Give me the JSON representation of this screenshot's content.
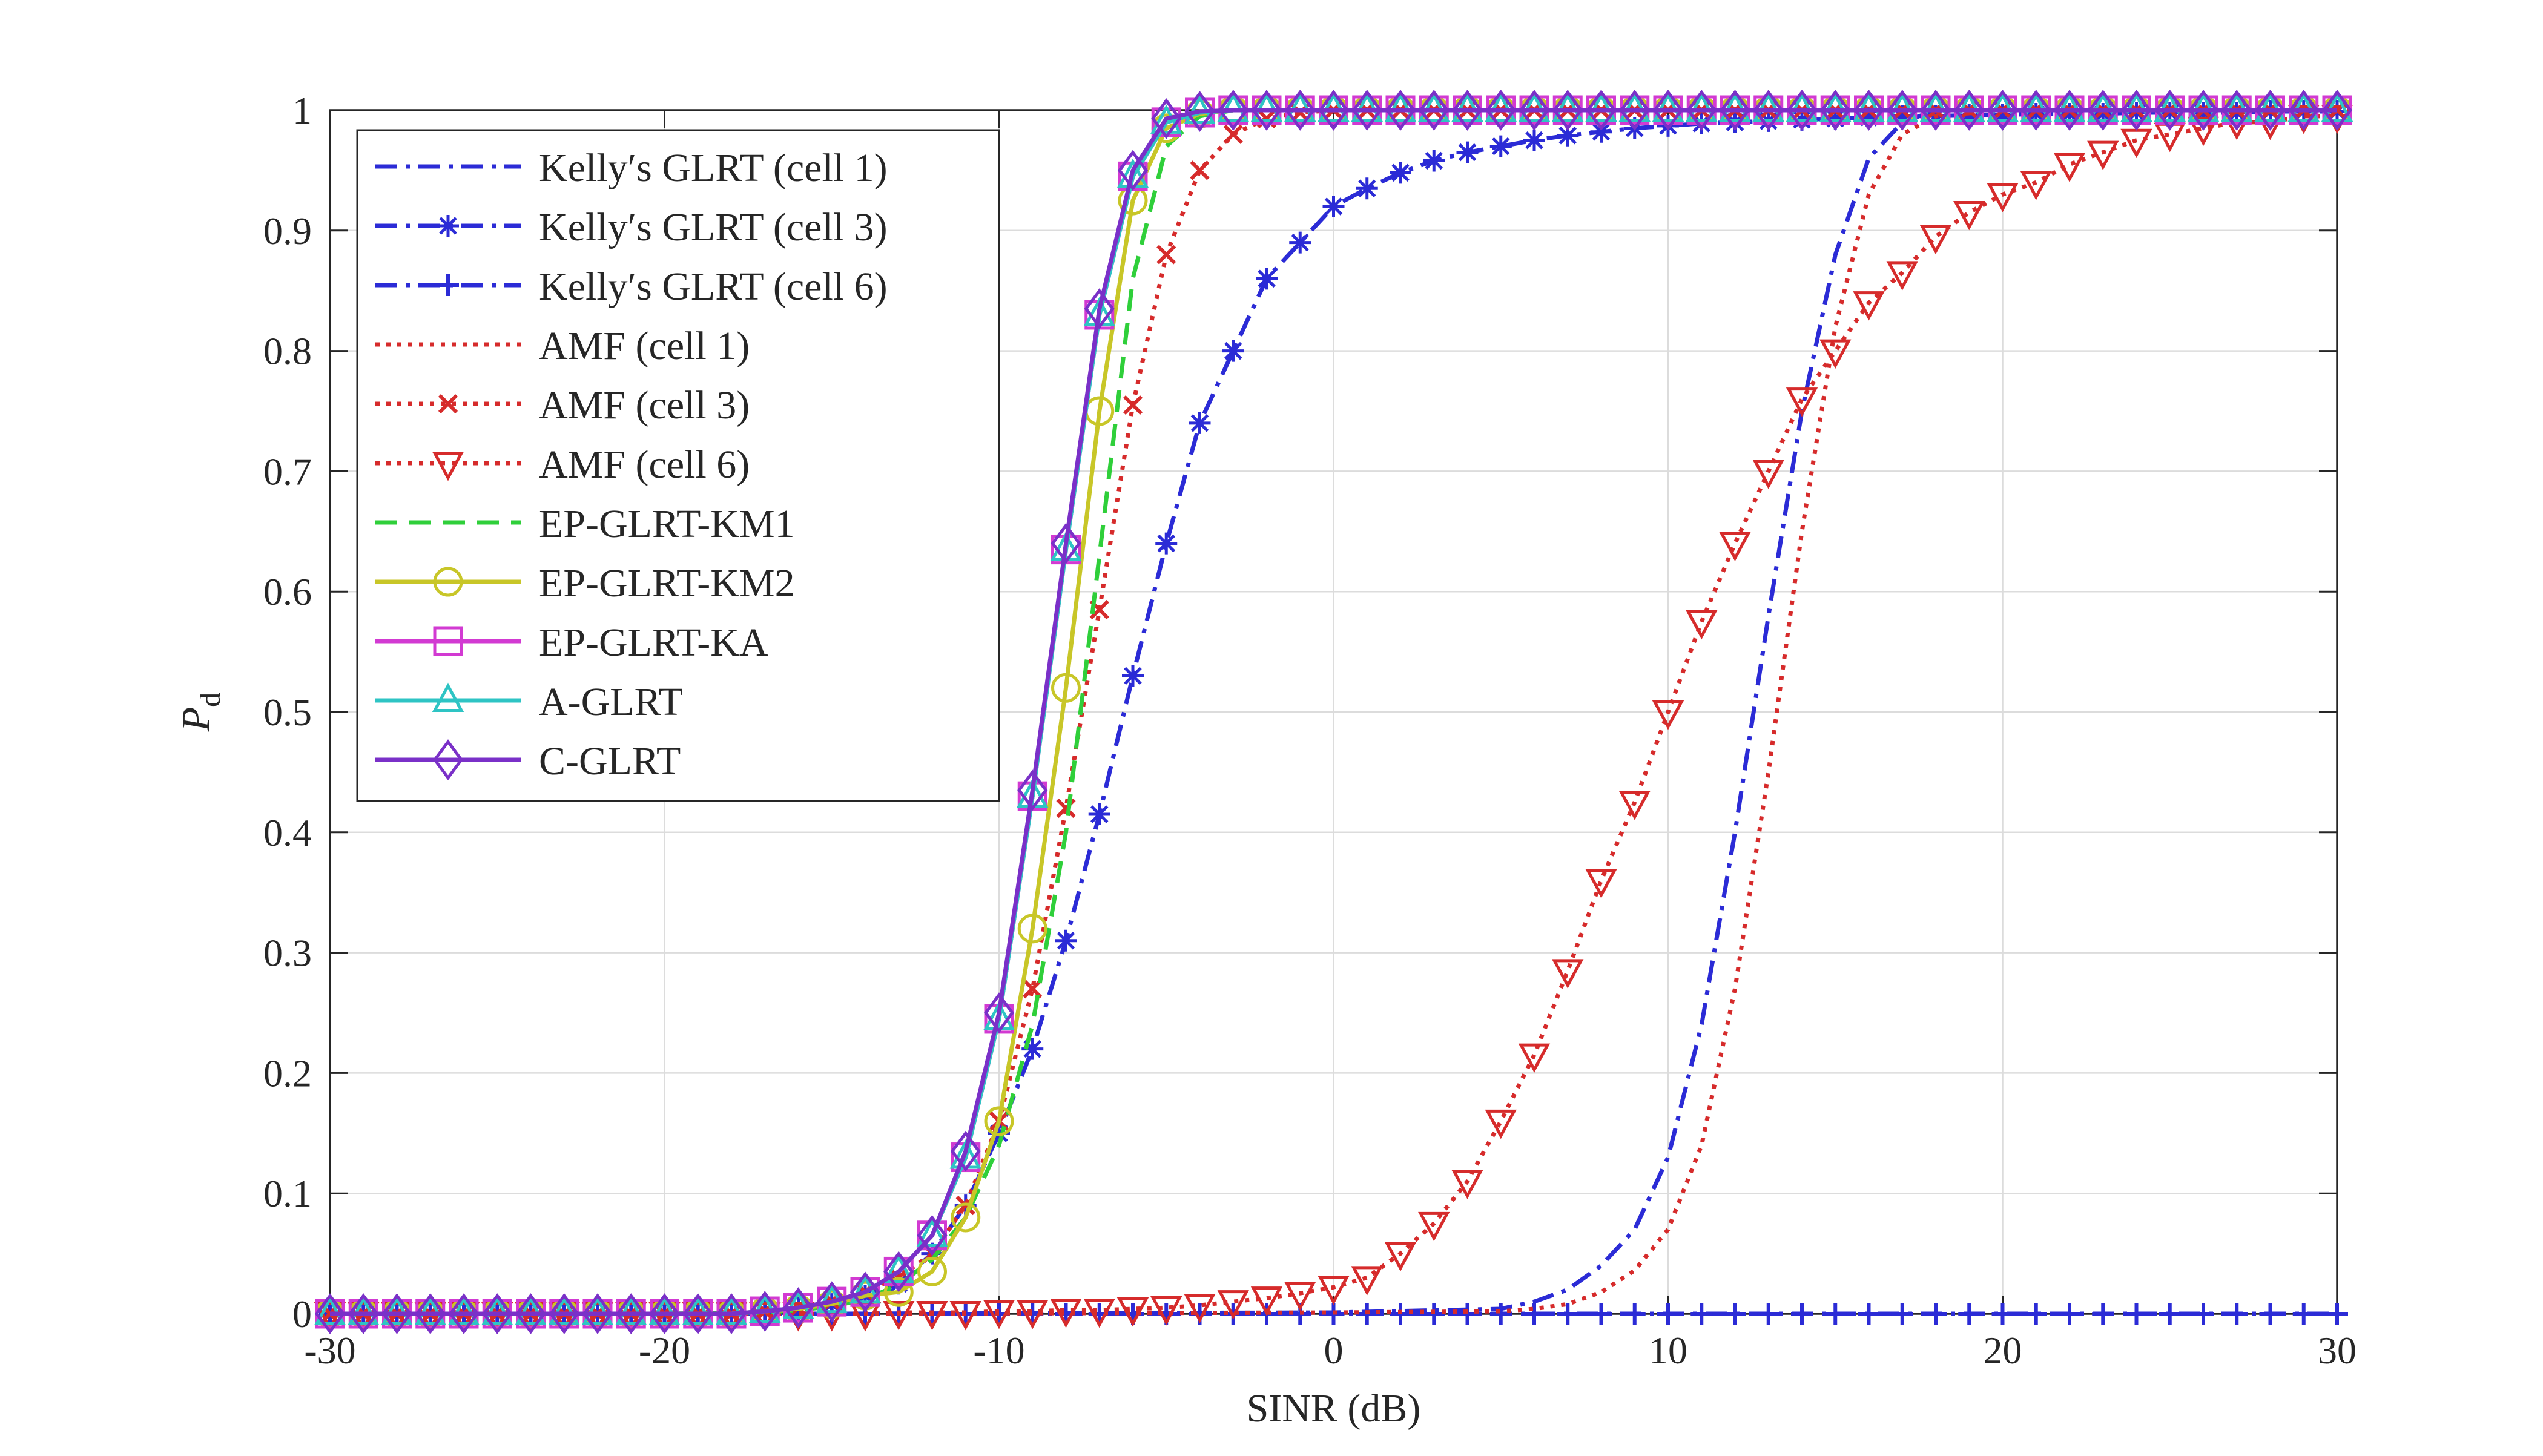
{
  "chart_data": {
    "type": "line",
    "xlabel": "SINR (dB)",
    "ylabel": "P",
    "ylabel_sub": "d",
    "xlim": [
      -30,
      30
    ],
    "ylim": [
      0,
      1
    ],
    "xticks": [
      "-30",
      "-20",
      "-10",
      "0",
      "10",
      "20",
      "30"
    ],
    "yticks": [
      "0",
      "0.1",
      "0.2",
      "0.3",
      "0.4",
      "0.5",
      "0.6",
      "0.7",
      "0.8",
      "0.9",
      "1"
    ],
    "grid": true,
    "legend_position": "top-left",
    "series": [
      {
        "name": "Kelly′s GLRT (cell 1)",
        "color": "#2b2bd6",
        "dash": "dashdot",
        "marker": "none",
        "x": [
          -30,
          -20,
          -15,
          0,
          5,
          6,
          7,
          8,
          9,
          10,
          11,
          12,
          13,
          14,
          15,
          16,
          17,
          18,
          20,
          25,
          30
        ],
        "y": [
          0,
          0,
          0,
          0.001,
          0.004,
          0.01,
          0.02,
          0.04,
          0.07,
          0.13,
          0.24,
          0.4,
          0.58,
          0.75,
          0.88,
          0.96,
          0.99,
          1,
          1,
          1,
          1
        ]
      },
      {
        "name": "Kelly′s GLRT (cell 3)",
        "color": "#2b2bd6",
        "dash": "dashdot",
        "marker": "asterisk",
        "x": [
          -30,
          -29,
          -28,
          -27,
          -26,
          -25,
          -24,
          -23,
          -22,
          -21,
          -20,
          -19,
          -18,
          -17,
          -16,
          -15,
          -14,
          -13,
          -12,
          -11,
          -10,
          -9,
          -8,
          -7,
          -6,
          -5,
          -4,
          -3,
          -2,
          -1,
          0,
          1,
          2,
          3,
          4,
          5,
          6,
          7,
          8,
          9,
          10,
          11,
          12,
          13,
          14,
          15,
          16,
          17,
          18,
          19,
          20,
          21,
          22,
          23,
          24,
          25,
          26,
          27,
          28,
          29,
          30
        ],
        "y": [
          0,
          0,
          0,
          0,
          0,
          0,
          0,
          0,
          0,
          0,
          0,
          0,
          0,
          0.002,
          0.005,
          0.008,
          0.015,
          0.025,
          0.05,
          0.09,
          0.15,
          0.22,
          0.31,
          0.415,
          0.53,
          0.64,
          0.74,
          0.8,
          0.86,
          0.89,
          0.92,
          0.935,
          0.948,
          0.958,
          0.965,
          0.97,
          0.975,
          0.979,
          0.982,
          0.985,
          0.987,
          0.989,
          0.99,
          0.991,
          0.992,
          0.993,
          0.994,
          0.995,
          0.995,
          0.996,
          0.996,
          0.997,
          0.997,
          0.997,
          0.998,
          0.998,
          0.998,
          0.998,
          0.999,
          0.999,
          0.999
        ]
      },
      {
        "name": "Kelly′s GLRT (cell 6)",
        "color": "#2b2bd6",
        "dash": "dashdot",
        "marker": "plus",
        "x": [
          -30,
          -29,
          -28,
          -27,
          -26,
          -25,
          -24,
          -23,
          -22,
          -21,
          -20,
          -19,
          -18,
          -17,
          -16,
          -15,
          -14,
          -13,
          -12,
          -11,
          -10,
          -9,
          -8,
          -7,
          -6,
          -5,
          -4,
          -3,
          -2,
          -1,
          0,
          1,
          2,
          3,
          4,
          5,
          6,
          7,
          8,
          9,
          10,
          11,
          12,
          13,
          14,
          15,
          16,
          17,
          18,
          19,
          20,
          21,
          22,
          23,
          24,
          25,
          26,
          27,
          28,
          29,
          30
        ],
        "y": [
          0,
          0,
          0,
          0,
          0,
          0,
          0,
          0,
          0,
          0,
          0,
          0,
          0,
          0,
          0,
          0,
          0,
          0,
          0,
          0,
          0,
          0,
          0,
          0,
          0,
          0,
          0,
          0,
          0,
          0,
          0,
          0,
          0,
          0,
          0,
          0,
          0,
          0,
          0,
          0,
          0,
          0,
          0,
          0,
          0,
          0,
          0,
          0,
          0,
          0,
          0,
          0,
          0,
          0,
          0,
          0,
          0,
          0,
          0,
          0,
          0
        ]
      },
      {
        "name": "AMF (cell 1)",
        "color": "#d62b2b",
        "dash": "dotted",
        "marker": "none",
        "x": [
          -30,
          -20,
          -15,
          0,
          5,
          6,
          7,
          8,
          9,
          10,
          11,
          12,
          13,
          14,
          15,
          16,
          17,
          18,
          20,
          25,
          30
        ],
        "y": [
          0,
          0,
          0,
          0.001,
          0.002,
          0.004,
          0.008,
          0.018,
          0.036,
          0.07,
          0.14,
          0.27,
          0.45,
          0.65,
          0.82,
          0.93,
          0.98,
          0.995,
          1,
          1,
          1
        ]
      },
      {
        "name": "AMF (cell 3)",
        "color": "#d62b2b",
        "dash": "dotted",
        "marker": "x",
        "x": [
          -30,
          -29,
          -28,
          -27,
          -26,
          -25,
          -24,
          -23,
          -22,
          -21,
          -20,
          -19,
          -18,
          -17,
          -16,
          -15,
          -14,
          -13,
          -12,
          -11,
          -10,
          -9,
          -8,
          -7,
          -6,
          -5,
          -4,
          -3,
          -2,
          -1,
          0,
          1,
          2,
          3,
          4,
          5,
          6,
          7,
          8,
          9,
          10,
          11,
          12,
          13,
          14,
          15,
          16,
          17,
          18,
          19,
          20,
          21,
          22,
          23,
          24,
          25,
          26,
          27,
          28,
          29,
          30
        ],
        "y": [
          0,
          0,
          0,
          0,
          0,
          0,
          0,
          0,
          0,
          0,
          0,
          0,
          0,
          0.002,
          0.005,
          0.01,
          0.018,
          0.03,
          0.05,
          0.09,
          0.16,
          0.27,
          0.42,
          0.585,
          0.755,
          0.88,
          0.95,
          0.98,
          0.993,
          0.998,
          1,
          1,
          1,
          1,
          1,
          1,
          1,
          1,
          1,
          1,
          1,
          1,
          1,
          1,
          1,
          1,
          1,
          1,
          1,
          1,
          1,
          1,
          1,
          1,
          1,
          1,
          1,
          1,
          1,
          1,
          1
        ]
      },
      {
        "name": "AMF (cell 6)",
        "color": "#d62b2b",
        "dash": "dotted",
        "marker": "triangle-down",
        "x": [
          -30,
          -29,
          -28,
          -27,
          -26,
          -25,
          -24,
          -23,
          -22,
          -21,
          -20,
          -19,
          -18,
          -17,
          -16,
          -15,
          -14,
          -13,
          -12,
          -11,
          -10,
          -9,
          -8,
          -7,
          -6,
          -5,
          -4,
          -3,
          -2,
          -1,
          0,
          1,
          2,
          3,
          4,
          5,
          6,
          7,
          8,
          9,
          10,
          11,
          12,
          13,
          14,
          15,
          16,
          17,
          18,
          19,
          20,
          21,
          22,
          23,
          24,
          25,
          26,
          27,
          28,
          29,
          30
        ],
        "y": [
          0,
          0,
          0,
          0,
          0,
          0,
          0,
          0,
          0,
          0,
          0,
          0,
          0,
          0,
          0,
          0,
          0,
          0.001,
          0.001,
          0.001,
          0.002,
          0.002,
          0.003,
          0.003,
          0.004,
          0.005,
          0.007,
          0.01,
          0.013,
          0.017,
          0.022,
          0.03,
          0.05,
          0.075,
          0.11,
          0.16,
          0.215,
          0.285,
          0.36,
          0.425,
          0.5,
          0.575,
          0.64,
          0.7,
          0.76,
          0.8,
          0.84,
          0.865,
          0.895,
          0.915,
          0.93,
          0.94,
          0.955,
          0.965,
          0.975,
          0.98,
          0.985,
          0.99,
          0.99,
          0.995,
          0.995
        ]
      },
      {
        "name": "EP-GLRT-KM1",
        "color": "#2fcf3a",
        "dash": "dashed",
        "marker": "none",
        "x": [
          -30,
          -20,
          -17,
          -16,
          -15,
          -14,
          -13,
          -12,
          -11,
          -10,
          -9,
          -8,
          -7,
          -6,
          -5,
          -4,
          -3,
          0,
          10,
          20,
          30
        ],
        "y": [
          0,
          0,
          0.001,
          0.003,
          0.006,
          0.012,
          0.024,
          0.045,
          0.08,
          0.14,
          0.24,
          0.4,
          0.63,
          0.86,
          0.97,
          0.995,
          1,
          1,
          1,
          1,
          1
        ]
      },
      {
        "name": "EP-GLRT-KM2",
        "color": "#c8c628",
        "dash": "solid",
        "marker": "circle",
        "x": [
          -30,
          -29,
          -28,
          -27,
          -26,
          -25,
          -24,
          -23,
          -22,
          -21,
          -20,
          -19,
          -18,
          -17,
          -16,
          -15,
          -14,
          -13,
          -12,
          -11,
          -10,
          -9,
          -8,
          -7,
          -6,
          -5,
          -4,
          -3,
          -2,
          -1,
          0,
          1,
          2,
          3,
          4,
          5,
          6,
          7,
          8,
          9,
          10,
          11,
          12,
          13,
          14,
          15,
          16,
          17,
          18,
          19,
          20,
          21,
          22,
          23,
          24,
          25,
          26,
          27,
          28,
          29,
          30
        ],
        "y": [
          0,
          0,
          0,
          0,
          0,
          0,
          0,
          0,
          0,
          0,
          0,
          0,
          0,
          0.002,
          0.004,
          0.008,
          0.015,
          0.018,
          0.035,
          0.08,
          0.16,
          0.32,
          0.52,
          0.75,
          0.925,
          0.985,
          0.997,
          1,
          1,
          1,
          1,
          1,
          1,
          1,
          1,
          1,
          1,
          1,
          1,
          1,
          1,
          1,
          1,
          1,
          1,
          1,
          1,
          1,
          1,
          1,
          1,
          1,
          1,
          1,
          1,
          1,
          1,
          1,
          1,
          1,
          1
        ]
      },
      {
        "name": "EP-GLRT-KA",
        "color": "#d23ad2",
        "dash": "solid",
        "marker": "square",
        "x": [
          -30,
          -29,
          -28,
          -27,
          -26,
          -25,
          -24,
          -23,
          -22,
          -21,
          -20,
          -19,
          -18,
          -17,
          -16,
          -15,
          -14,
          -13,
          -12,
          -11,
          -10,
          -9,
          -8,
          -7,
          -6,
          -5,
          -4,
          -3,
          -2,
          -1,
          0,
          1,
          2,
          3,
          4,
          5,
          6,
          7,
          8,
          9,
          10,
          11,
          12,
          13,
          14,
          15,
          16,
          17,
          18,
          19,
          20,
          21,
          22,
          23,
          24,
          25,
          26,
          27,
          28,
          29,
          30
        ],
        "y": [
          0,
          0,
          0,
          0,
          0,
          0,
          0,
          0,
          0,
          0,
          0,
          0,
          0,
          0.002,
          0.005,
          0.01,
          0.018,
          0.035,
          0.065,
          0.13,
          0.245,
          0.43,
          0.635,
          0.83,
          0.945,
          0.99,
          0.998,
          1,
          1,
          1,
          1,
          1,
          1,
          1,
          1,
          1,
          1,
          1,
          1,
          1,
          1,
          1,
          1,
          1,
          1,
          1,
          1,
          1,
          1,
          1,
          1,
          1,
          1,
          1,
          1,
          1,
          1,
          1,
          1,
          1,
          1
        ]
      },
      {
        "name": "A-GLRT",
        "color": "#2ec4c4",
        "dash": "solid",
        "marker": "triangle-up",
        "x": [
          -30,
          -29,
          -28,
          -27,
          -26,
          -25,
          -24,
          -23,
          -22,
          -21,
          -20,
          -19,
          -18,
          -17,
          -16,
          -15,
          -14,
          -13,
          -12,
          -11,
          -10,
          -9,
          -8,
          -7,
          -6,
          -5,
          -4,
          -3,
          -2,
          -1,
          0,
          1,
          2,
          3,
          4,
          5,
          6,
          7,
          8,
          9,
          10,
          11,
          12,
          13,
          14,
          15,
          16,
          17,
          18,
          19,
          20,
          21,
          22,
          23,
          24,
          25,
          26,
          27,
          28,
          29,
          30
        ],
        "y": [
          0,
          0,
          0,
          0,
          0,
          0,
          0,
          0,
          0,
          0,
          0,
          0,
          0,
          0.002,
          0.005,
          0.01,
          0.018,
          0.035,
          0.065,
          0.13,
          0.245,
          0.43,
          0.635,
          0.83,
          0.945,
          0.99,
          0.998,
          1,
          1,
          1,
          1,
          1,
          1,
          1,
          1,
          1,
          1,
          1,
          1,
          1,
          1,
          1,
          1,
          1,
          1,
          1,
          1,
          1,
          1,
          1,
          1,
          1,
          1,
          1,
          1,
          1,
          1,
          1,
          1,
          1,
          1
        ]
      },
      {
        "name": "C-GLRT",
        "color": "#7a30c8",
        "dash": "solid",
        "marker": "diamond",
        "x": [
          -30,
          -29,
          -28,
          -27,
          -26,
          -25,
          -24,
          -23,
          -22,
          -21,
          -20,
          -19,
          -18,
          -17,
          -16,
          -15,
          -14,
          -13,
          -12,
          -11,
          -10,
          -9,
          -8,
          -7,
          -6,
          -5,
          -4,
          -3,
          -2,
          -1,
          0,
          1,
          2,
          3,
          4,
          5,
          6,
          7,
          8,
          9,
          10,
          11,
          12,
          13,
          14,
          15,
          16,
          17,
          18,
          19,
          20,
          21,
          22,
          23,
          24,
          25,
          26,
          27,
          28,
          29,
          30
        ],
        "y": [
          0,
          0,
          0,
          0,
          0,
          0,
          0,
          0,
          0,
          0,
          0,
          0,
          0,
          0.002,
          0.005,
          0.01,
          0.018,
          0.035,
          0.065,
          0.135,
          0.25,
          0.435,
          0.64,
          0.835,
          0.95,
          0.993,
          0.999,
          1,
          1,
          1,
          1,
          1,
          1,
          1,
          1,
          1,
          1,
          1,
          1,
          1,
          1,
          1,
          1,
          1,
          1,
          1,
          1,
          1,
          1,
          1,
          1,
          1,
          1,
          1,
          1,
          1,
          1,
          1,
          1,
          1,
          1
        ]
      }
    ]
  }
}
